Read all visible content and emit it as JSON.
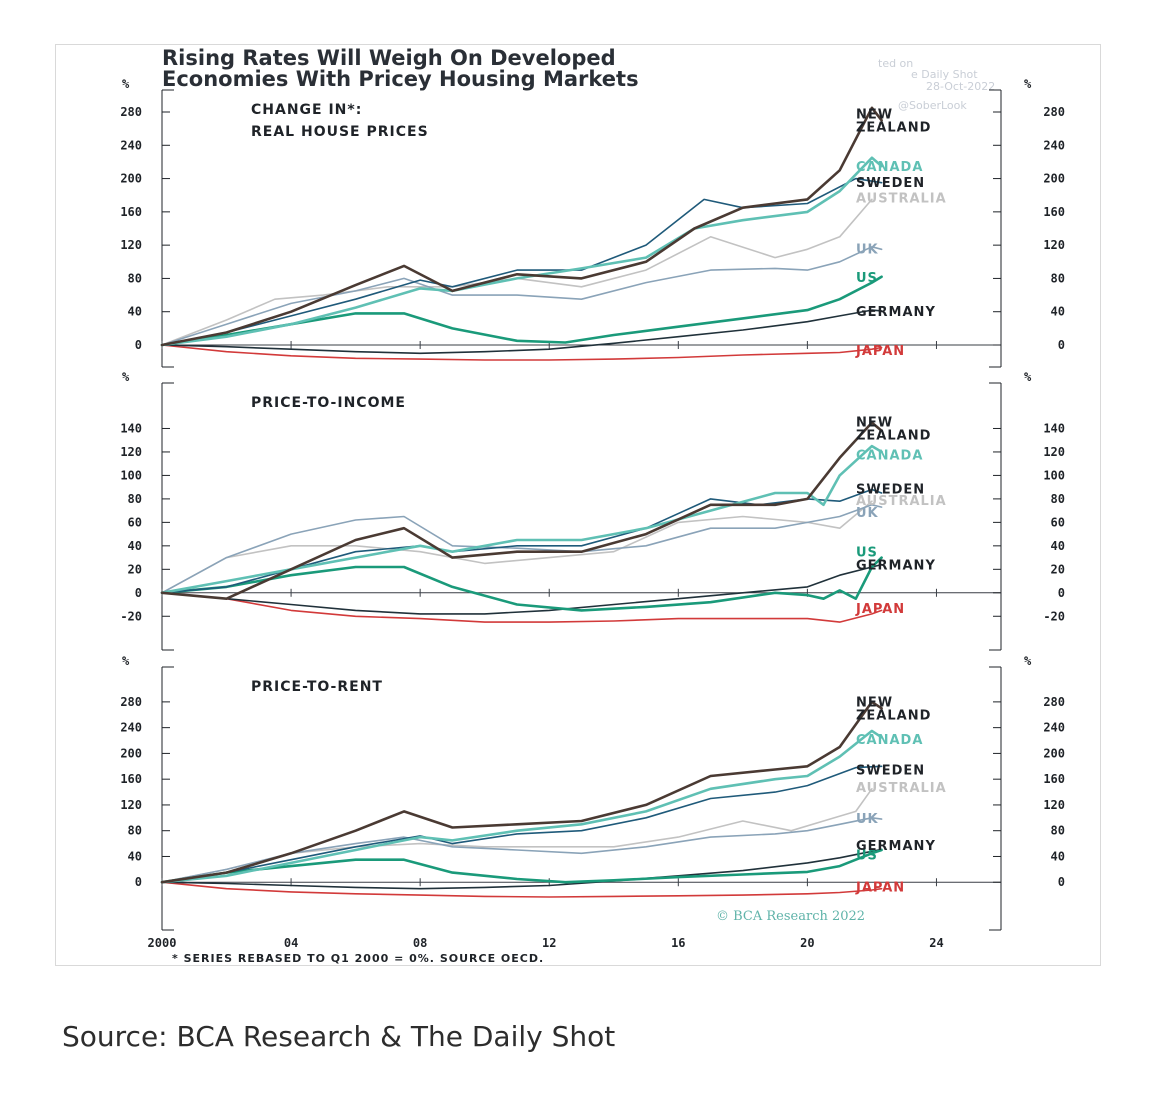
{
  "title_line1": "Rising Rates Will Weigh On Developed",
  "title_line2": "Economies With Pricey Housing Markets",
  "watermark": {
    "line1": "ted on",
    "line2": "e Daily Shot",
    "line3": "28-Oct-2022",
    "line4": "@SoberLook"
  },
  "footnote": "* SERIES REBASED TO Q1 2000 = 0%. SOURCE OECD.",
  "copyright": "© BCA Research 2022",
  "source_caption": "Source: BCA Research & The Daily Shot",
  "colors": {
    "New Zealand": "#4a3a33",
    "Canada": "#5fc0b4",
    "Sweden": "#1f5a7a",
    "Australia": "#c2c2c2",
    "UK": "#8aa3b8",
    "US": "#1a9a7a",
    "Germany": "#20313a",
    "Japan": "#d23a3a"
  },
  "chart_data": [
    {
      "type": "line",
      "title": "CHANGE IN*:",
      "subtitle": "REAL HOUSE PRICES",
      "yunit": "%",
      "ylim": [
        0,
        280
      ],
      "yticks": [
        0,
        40,
        80,
        120,
        160,
        200,
        240,
        280
      ],
      "xlim": [
        2000,
        2026
      ],
      "xticks": [
        2000,
        2004,
        2008,
        2012,
        2016,
        2020,
        2024
      ],
      "xticklabels": [
        "2000",
        "04",
        "08",
        "12",
        "16",
        "20",
        "24"
      ],
      "legend_placement": "right, labels at line ends",
      "series": [
        {
          "name": "NEW ZEALAND",
          "key": "New Zealand",
          "x": [
            2000,
            2002,
            2004,
            2006,
            2007.5,
            2009,
            2011,
            2013,
            2015,
            2016.5,
            2018,
            2020,
            2021,
            2022,
            2022.3
          ],
          "values": [
            0,
            15,
            40,
            72,
            95,
            65,
            85,
            80,
            100,
            140,
            165,
            175,
            210,
            285,
            270
          ]
        },
        {
          "name": "CANADA",
          "key": "Canada",
          "x": [
            2000,
            2002,
            2004,
            2006,
            2008,
            2009,
            2011,
            2013,
            2015,
            2016.5,
            2018,
            2020,
            2021,
            2022,
            2022.3
          ],
          "values": [
            0,
            10,
            25,
            45,
            68,
            65,
            80,
            92,
            105,
            140,
            150,
            160,
            185,
            225,
            215
          ]
        },
        {
          "name": "SWEDEN",
          "key": "Sweden",
          "x": [
            2000,
            2002,
            2004,
            2006,
            2008,
            2009,
            2011,
            2013,
            2015,
            2016.8,
            2018,
            2020,
            2021.5,
            2022.3
          ],
          "values": [
            0,
            15,
            35,
            55,
            78,
            70,
            90,
            90,
            120,
            175,
            165,
            170,
            200,
            195
          ]
        },
        {
          "name": "AUSTRALIA",
          "key": "Australia",
          "x": [
            2000,
            2002,
            2003.5,
            2005,
            2007,
            2009,
            2011,
            2013,
            2015,
            2017,
            2019,
            2020,
            2021,
            2022
          ],
          "values": [
            0,
            30,
            55,
            60,
            70,
            70,
            80,
            70,
            90,
            130,
            105,
            115,
            130,
            175
          ]
        },
        {
          "name": "UK",
          "key": "UK",
          "x": [
            2000,
            2002,
            2004,
            2006,
            2007.5,
            2009,
            2011,
            2013,
            2015,
            2017,
            2019,
            2020,
            2021,
            2022,
            2022.3
          ],
          "values": [
            0,
            25,
            50,
            65,
            80,
            60,
            60,
            55,
            75,
            90,
            92,
            90,
            100,
            118,
            115
          ]
        },
        {
          "name": "US",
          "key": "US",
          "x": [
            2000,
            2002,
            2004,
            2006,
            2007.5,
            2009,
            2011,
            2012.5,
            2014,
            2016,
            2018,
            2020,
            2021,
            2022,
            2022.3
          ],
          "values": [
            0,
            12,
            25,
            38,
            38,
            20,
            5,
            3,
            12,
            22,
            32,
            42,
            55,
            75,
            82
          ]
        },
        {
          "name": "GERMANY",
          "key": "Germany",
          "x": [
            2000,
            2002,
            2004,
            2006,
            2008,
            2010,
            2012,
            2014,
            2016,
            2018,
            2020,
            2021,
            2022,
            2022.3
          ],
          "values": [
            0,
            -2,
            -5,
            -8,
            -10,
            -8,
            -5,
            2,
            10,
            18,
            28,
            35,
            42,
            41
          ]
        },
        {
          "name": "JAPAN",
          "key": "Japan",
          "x": [
            2000,
            2002,
            2004,
            2006,
            2008,
            2010,
            2012,
            2014,
            2016,
            2018,
            2020,
            2021,
            2022,
            2022.3
          ],
          "values": [
            0,
            -8,
            -13,
            -16,
            -17,
            -18,
            -18,
            -17,
            -15,
            -12,
            -10,
            -9,
            -5,
            -3
          ]
        }
      ]
    },
    {
      "type": "line",
      "title": "PRICE-TO-INCOME",
      "yunit": "%",
      "ylim": [
        -30,
        160
      ],
      "yticks": [
        -20,
        0,
        20,
        40,
        60,
        80,
        100,
        120,
        140
      ],
      "xlim": [
        2000,
        2026
      ],
      "xticks": [
        2000,
        2004,
        2008,
        2012,
        2016,
        2020,
        2024
      ],
      "legend_placement": "right, labels at line ends",
      "series": [
        {
          "name": "NEW ZEALAND",
          "key": "New Zealand",
          "x": [
            2000,
            2002,
            2004,
            2006,
            2007.5,
            2009,
            2011,
            2013,
            2015,
            2017,
            2019,
            2020,
            2021,
            2022,
            2022.3
          ],
          "values": [
            0,
            -5,
            20,
            45,
            55,
            30,
            35,
            35,
            50,
            75,
            75,
            80,
            115,
            145,
            138
          ]
        },
        {
          "name": "CANADA",
          "key": "Canada",
          "x": [
            2000,
            2002,
            2004,
            2006,
            2008,
            2009,
            2011,
            2013,
            2015,
            2017,
            2019,
            2020,
            2020.5,
            2021,
            2022,
            2022.3
          ],
          "values": [
            0,
            10,
            20,
            30,
            40,
            35,
            45,
            45,
            55,
            70,
            85,
            85,
            75,
            100,
            125,
            120
          ]
        },
        {
          "name": "SWEDEN",
          "key": "Sweden",
          "x": [
            2000,
            2002,
            2004,
            2006,
            2008,
            2009,
            2011,
            2013,
            2015,
            2017,
            2018.5,
            2020,
            2021,
            2022,
            2022.3
          ],
          "values": [
            0,
            5,
            20,
            35,
            40,
            35,
            40,
            40,
            55,
            80,
            75,
            80,
            78,
            88,
            85
          ]
        },
        {
          "name": "AUSTRALIA",
          "key": "Australia",
          "x": [
            2000,
            2002,
            2004,
            2006,
            2008,
            2010,
            2012,
            2014,
            2016,
            2018,
            2020,
            2021,
            2022
          ],
          "values": [
            0,
            30,
            40,
            40,
            35,
            25,
            30,
            35,
            60,
            65,
            60,
            55,
            78
          ]
        },
        {
          "name": "UK",
          "key": "UK",
          "x": [
            2000,
            2002,
            2004,
            2006,
            2007.5,
            2009,
            2011,
            2013,
            2015,
            2017,
            2019,
            2020,
            2021,
            2022,
            2022.3
          ],
          "values": [
            0,
            30,
            50,
            62,
            65,
            40,
            38,
            35,
            40,
            55,
            55,
            60,
            65,
            75,
            73
          ]
        },
        {
          "name": "US",
          "key": "US",
          "x": [
            2000,
            2002,
            2004,
            2006,
            2007.5,
            2009,
            2011,
            2013,
            2015,
            2017,
            2019,
            2020,
            2020.5,
            2021,
            2021.5,
            2022,
            2022.3
          ],
          "values": [
            0,
            5,
            15,
            22,
            22,
            5,
            -10,
            -15,
            -12,
            -8,
            0,
            -2,
            -5,
            2,
            -5,
            22,
            30
          ]
        },
        {
          "name": "GERMANY",
          "key": "Germany",
          "x": [
            2000,
            2002,
            2004,
            2006,
            2008,
            2010,
            2012,
            2014,
            2016,
            2018,
            2020,
            2021,
            2022,
            2022.3
          ],
          "values": [
            0,
            -5,
            -10,
            -15,
            -18,
            -18,
            -15,
            -10,
            -5,
            0,
            5,
            15,
            22,
            24
          ]
        },
        {
          "name": "JAPAN",
          "key": "Japan",
          "x": [
            2000,
            2002,
            2004,
            2006,
            2008,
            2010,
            2012,
            2014,
            2016,
            2018,
            2020,
            2021,
            2022,
            2022.3
          ],
          "values": [
            0,
            -5,
            -15,
            -20,
            -22,
            -25,
            -25,
            -24,
            -22,
            -22,
            -22,
            -25,
            -18,
            -15
          ]
        }
      ]
    },
    {
      "type": "line",
      "title": "PRICE-TO-RENT",
      "yunit": "%",
      "ylim": [
        -40,
        300
      ],
      "yticks": [
        0,
        40,
        80,
        120,
        160,
        200,
        240,
        280
      ],
      "xlim": [
        2000,
        2026
      ],
      "xticks": [
        2000,
        2004,
        2008,
        2012,
        2016,
        2020,
        2024
      ],
      "xticklabels": [
        "2000",
        "04",
        "08",
        "12",
        "16",
        "20",
        "24"
      ],
      "legend_placement": "right, labels at line ends",
      "series": [
        {
          "name": "NEW ZEALAND",
          "key": "New Zealand",
          "x": [
            2000,
            2002,
            2004,
            2006,
            2007.5,
            2009,
            2011,
            2013,
            2015,
            2017,
            2019,
            2020,
            2021,
            2022,
            2022.3
          ],
          "values": [
            0,
            15,
            45,
            80,
            110,
            85,
            90,
            95,
            120,
            165,
            175,
            180,
            210,
            280,
            270
          ]
        },
        {
          "name": "CANADA",
          "key": "Canada",
          "x": [
            2000,
            2002,
            2004,
            2006,
            2008,
            2009,
            2011,
            2013,
            2015,
            2017,
            2019,
            2020,
            2021,
            2022,
            2022.3
          ],
          "values": [
            0,
            10,
            30,
            50,
            70,
            65,
            80,
            90,
            110,
            145,
            160,
            165,
            195,
            235,
            225
          ]
        },
        {
          "name": "SWEDEN",
          "key": "Sweden",
          "x": [
            2000,
            2002,
            2004,
            2006,
            2008,
            2009,
            2011,
            2013,
            2015,
            2017,
            2019,
            2020,
            2021.5,
            2022.3
          ],
          "values": [
            0,
            15,
            35,
            55,
            72,
            60,
            75,
            80,
            100,
            130,
            140,
            150,
            178,
            180
          ]
        },
        {
          "name": "AUSTRALIA",
          "key": "Australia",
          "x": [
            2000,
            2002,
            2004,
            2006,
            2008,
            2010,
            2012,
            2014,
            2016,
            2018,
            2019.5,
            2020.5,
            2021.5,
            2022
          ],
          "values": [
            0,
            20,
            45,
            55,
            60,
            55,
            55,
            55,
            70,
            95,
            80,
            95,
            110,
            145
          ]
        },
        {
          "name": "UK",
          "key": "UK",
          "x": [
            2000,
            2002,
            2004,
            2006,
            2007.5,
            2009,
            2011,
            2013,
            2015,
            2017,
            2019,
            2020,
            2021,
            2022,
            2022.3
          ],
          "values": [
            0,
            20,
            45,
            60,
            70,
            55,
            50,
            45,
            55,
            70,
            75,
            80,
            90,
            100,
            98
          ]
        },
        {
          "name": "US",
          "key": "US",
          "x": [
            2000,
            2002,
            2004,
            2006,
            2007.5,
            2009,
            2011,
            2012.5,
            2014,
            2016,
            2018,
            2020,
            2021,
            2022,
            2022.3
          ],
          "values": [
            0,
            15,
            25,
            35,
            35,
            15,
            5,
            0,
            3,
            8,
            12,
            16,
            25,
            45,
            50
          ]
        },
        {
          "name": "GERMANY",
          "key": "Germany",
          "x": [
            2000,
            2002,
            2004,
            2006,
            2008,
            2010,
            2012,
            2014,
            2016,
            2018,
            2020,
            2021,
            2022,
            2022.3
          ],
          "values": [
            0,
            -2,
            -5,
            -8,
            -10,
            -8,
            -5,
            2,
            10,
            18,
            30,
            38,
            48,
            51
          ]
        },
        {
          "name": "JAPAN",
          "key": "Japan",
          "x": [
            2000,
            2002,
            2004,
            2006,
            2008,
            2010,
            2012,
            2014,
            2016,
            2018,
            2020,
            2021,
            2022,
            2022.3
          ],
          "values": [
            0,
            -10,
            -15,
            -18,
            -20,
            -22,
            -23,
            -22,
            -21,
            -20,
            -18,
            -16,
            -12,
            -10
          ]
        }
      ]
    }
  ]
}
